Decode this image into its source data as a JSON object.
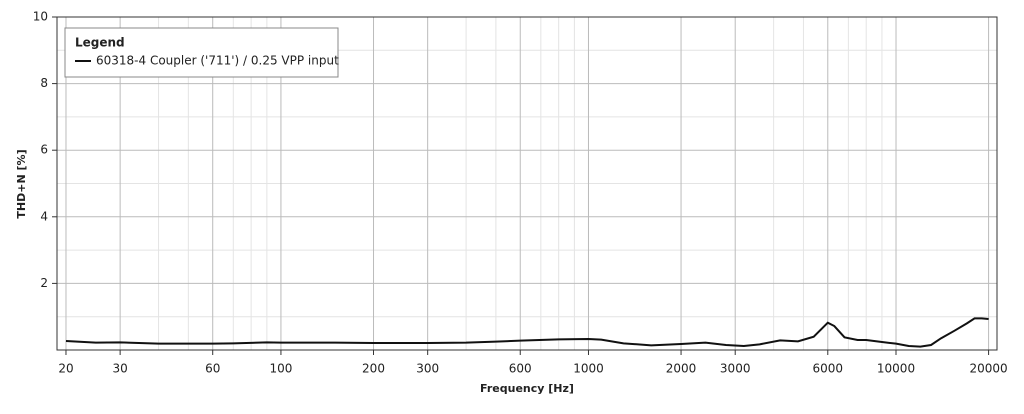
{
  "chart_data": {
    "type": "line",
    "log_x": true,
    "grid": true,
    "xlabel": "Frequency [Hz]",
    "ylabel": "THD+N [%]",
    "legend_title": "Legend",
    "legend_position": "upper left",
    "xlim": [
      18.7,
      21300
    ],
    "ylim": [
      0,
      10
    ],
    "xticks": [
      20,
      30,
      60,
      100,
      200,
      300,
      600,
      1000,
      2000,
      3000,
      6000,
      10000,
      20000
    ],
    "xminor": [
      40,
      50,
      70,
      80,
      90,
      400,
      500,
      700,
      800,
      900,
      4000,
      5000,
      7000,
      8000,
      9000
    ],
    "yticks": [
      2,
      4,
      6,
      8,
      10
    ],
    "yminor": [
      1,
      3,
      5,
      7,
      9
    ],
    "x": [
      20,
      25,
      30,
      40,
      50,
      60,
      70,
      90,
      100,
      150,
      200,
      300,
      400,
      500,
      600,
      800,
      1000,
      1100,
      1300,
      1600,
      2000,
      2400,
      2800,
      3200,
      3600,
      4200,
      4800,
      5400,
      6000,
      6300,
      6800,
      7500,
      8000,
      9000,
      10000,
      11000,
      12000,
      13000,
      14000,
      15500,
      17000,
      18000,
      19000,
      20000
    ],
    "series": [
      {
        "name": "60318-4 Coupler ('711') / 0.25 VPP input",
        "color": "#111111",
        "values": [
          0.27,
          0.22,
          0.23,
          0.19,
          0.19,
          0.19,
          0.2,
          0.23,
          0.22,
          0.22,
          0.21,
          0.21,
          0.22,
          0.25,
          0.28,
          0.32,
          0.33,
          0.31,
          0.2,
          0.14,
          0.18,
          0.22,
          0.15,
          0.12,
          0.17,
          0.29,
          0.26,
          0.4,
          0.82,
          0.72,
          0.38,
          0.3,
          0.3,
          0.24,
          0.19,
          0.12,
          0.1,
          0.15,
          0.35,
          0.58,
          0.8,
          0.95,
          0.95,
          0.93
        ]
      }
    ]
  }
}
